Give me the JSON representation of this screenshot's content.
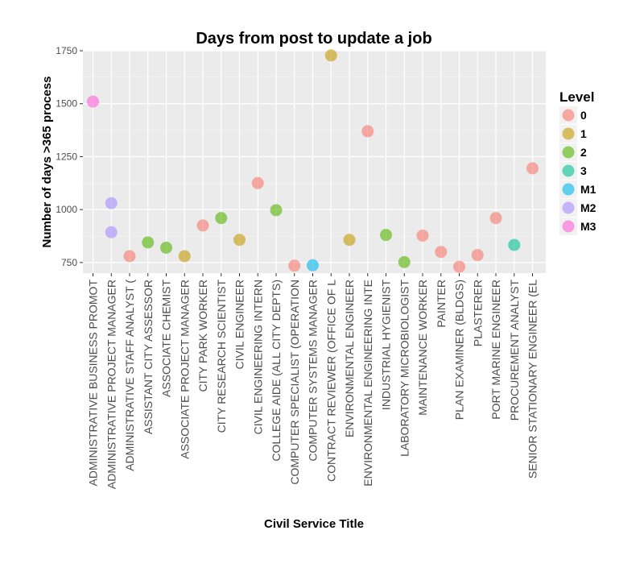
{
  "chart_data": {
    "type": "scatter",
    "title": "Days from post to update a job",
    "xlabel": "Civil Service Title",
    "ylabel": "Number of days >365 process",
    "ylim": [
      700,
      1750
    ],
    "yticks": [
      750,
      1000,
      1250,
      1500,
      1750
    ],
    "grid": true,
    "legend_position": "right",
    "legend_title": "Level",
    "categories": [
      "ADMINISTRATIVE BUSINESS PROMOT",
      "ADMINISTRATIVE PROJECT MANAGER",
      "ADMINISTRATIVE STAFF ANALYST (",
      "ASSISTANT CITY ASSESSOR",
      "ASSOCIATE CHEMIST",
      "ASSOCIATE PROJECT MANAGER",
      "CITY PARK WORKER",
      "CITY RESEARCH SCIENTIST",
      "CIVIL ENGINEER",
      "CIVIL ENGINEERING INTERN",
      "COLLEGE AIDE (ALL CITY DEPTS)",
      "COMPUTER SPECIALIST (OPERATION",
      "COMPUTER SYSTEMS MANAGER",
      "CONTRACT REVIEWER (OFFICE OF L",
      "ENVIRONMENTAL ENGINEER",
      "ENVIRONMENTAL ENGINEERING INTE",
      "INDUSTRIAL HYGIENIST",
      "LABORATORY MICROBIOLOGIST",
      "MAINTENANCE WORKER",
      "PAINTER",
      "PLAN EXAMINER (BLDGS)",
      "PLASTERER",
      "PORT MARINE ENGINEER",
      "PROCUREMENT ANALYST",
      "SENIOR STATIONARY ENGINEER (EL"
    ],
    "levels": [
      {
        "name": "0",
        "color": "#F8766D"
      },
      {
        "name": "1",
        "color": "#C49A00"
      },
      {
        "name": "2",
        "color": "#53B400"
      },
      {
        "name": "3",
        "color": "#00C094"
      },
      {
        "name": "M1",
        "color": "#00B6EB"
      },
      {
        "name": "M2",
        "color": "#A58AFF"
      },
      {
        "name": "M3",
        "color": "#FB61D7"
      }
    ],
    "points": [
      {
        "category": "ADMINISTRATIVE BUSINESS PROMOT",
        "level": "M3",
        "y": 1510
      },
      {
        "category": "ADMINISTRATIVE PROJECT MANAGER",
        "level": "M2",
        "y": 1030
      },
      {
        "category": "ADMINISTRATIVE PROJECT MANAGER",
        "level": "M2",
        "y": 893
      },
      {
        "category": "ADMINISTRATIVE STAFF ANALYST (",
        "level": "0",
        "y": 780
      },
      {
        "category": "ASSISTANT CITY ASSESSOR",
        "level": "2",
        "y": 845
      },
      {
        "category": "ASSOCIATE CHEMIST",
        "level": "2",
        "y": 820
      },
      {
        "category": "ASSOCIATE PROJECT MANAGER",
        "level": "1",
        "y": 780
      },
      {
        "category": "CITY PARK WORKER",
        "level": "0",
        "y": 925
      },
      {
        "category": "CITY RESEARCH SCIENTIST",
        "level": "2",
        "y": 960
      },
      {
        "category": "CIVIL ENGINEER",
        "level": "1",
        "y": 857
      },
      {
        "category": "CIVIL ENGINEERING INTERN",
        "level": "0",
        "y": 1125
      },
      {
        "category": "COLLEGE AIDE (ALL CITY DEPTS)",
        "level": "2",
        "y": 997
      },
      {
        "category": "COMPUTER SPECIALIST (OPERATION",
        "level": "0",
        "y": 735
      },
      {
        "category": "COMPUTER SYSTEMS MANAGER",
        "level": "M1",
        "y": 737
      },
      {
        "category": "CONTRACT REVIEWER (OFFICE OF L",
        "level": "1",
        "y": 1728
      },
      {
        "category": "ENVIRONMENTAL ENGINEER",
        "level": "1",
        "y": 857
      },
      {
        "category": "ENVIRONMENTAL ENGINEERING INTE",
        "level": "0",
        "y": 1370
      },
      {
        "category": "INDUSTRIAL HYGIENIST",
        "level": "2",
        "y": 880
      },
      {
        "category": "LABORATORY MICROBIOLOGIST",
        "level": "2",
        "y": 752
      },
      {
        "category": "MAINTENANCE WORKER",
        "level": "0",
        "y": 877
      },
      {
        "category": "PAINTER",
        "level": "0",
        "y": 800
      },
      {
        "category": "PLAN EXAMINER (BLDGS)",
        "level": "0",
        "y": 730
      },
      {
        "category": "PLASTERER",
        "level": "0",
        "y": 785
      },
      {
        "category": "PORT MARINE ENGINEER",
        "level": "0",
        "y": 960
      },
      {
        "category": "PROCUREMENT ANALYST",
        "level": "3",
        "y": 833
      },
      {
        "category": "SENIOR STATIONARY ENGINEER (EL",
        "level": "0",
        "y": 1195
      }
    ]
  }
}
